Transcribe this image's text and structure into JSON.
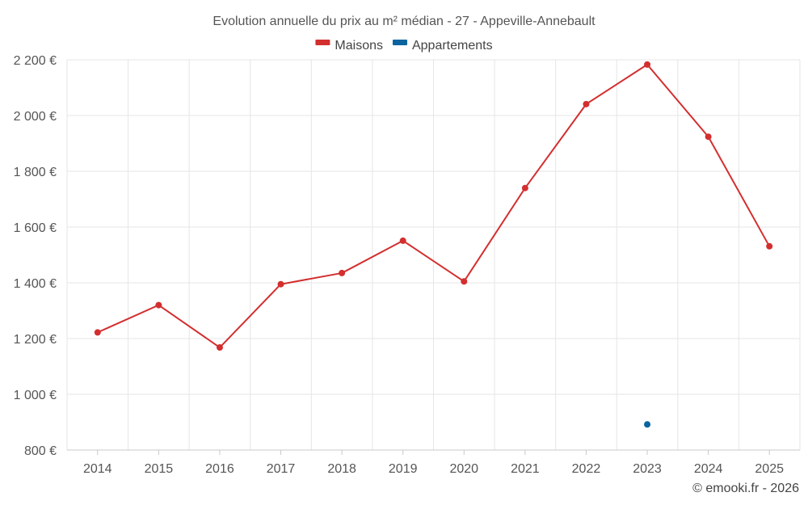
{
  "chart_data": {
    "type": "line",
    "title": "Evolution annuelle du prix au m² médian - 27 - Appeville-Annebault",
    "categories": [
      "2014",
      "2015",
      "2016",
      "2017",
      "2018",
      "2019",
      "2020",
      "2021",
      "2022",
      "2023",
      "2024",
      "2025"
    ],
    "ylim": [
      800,
      2200
    ],
    "y_ticks": [
      800,
      1000,
      1200,
      1400,
      1600,
      1800,
      2000,
      2200
    ],
    "y_tick_labels": [
      "800 €",
      "1 000 €",
      "1 200 €",
      "1 400 €",
      "1 600 €",
      "1 800 €",
      "2 000 €",
      "2 200 €"
    ],
    "grid": true,
    "legend_position": "top-center",
    "series": [
      {
        "name": "Maisons",
        "color": "#d32f2f",
        "values": [
          1222,
          1320,
          1168,
          1395,
          1435,
          1551,
          1405,
          1740,
          2041,
          2183,
          1924,
          1531
        ]
      },
      {
        "name": "Appartements",
        "color": "#0a64a0",
        "values": [
          null,
          null,
          null,
          null,
          null,
          null,
          null,
          null,
          null,
          892,
          null,
          null
        ]
      }
    ],
    "credit": "© emooki.fr - 2026"
  }
}
